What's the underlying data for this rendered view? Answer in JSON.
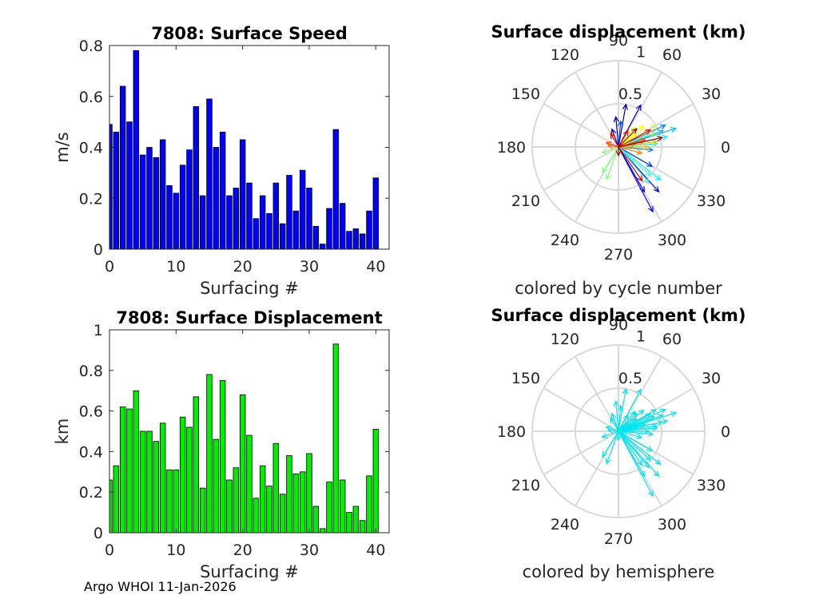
{
  "chart_data": [
    {
      "type": "bar",
      "title": "7808: Surface Speed",
      "xlabel": "Surfacing #",
      "ylabel": "m/s",
      "xlim": [
        0,
        42
      ],
      "ylim": [
        0,
        0.8
      ],
      "xticks": [
        "0",
        "10",
        "20",
        "30",
        "40"
      ],
      "yticks": [
        "0",
        "0.2",
        "0.4",
        "0.6",
        "0.8"
      ],
      "color": "#0000ff",
      "x": [
        0,
        1,
        2,
        3,
        4,
        5,
        6,
        7,
        8,
        9,
        10,
        11,
        12,
        13,
        14,
        15,
        16,
        17,
        18,
        19,
        20,
        21,
        22,
        23,
        24,
        25,
        26,
        27,
        28,
        29,
        30,
        31,
        32,
        33,
        34,
        35,
        36,
        37,
        38,
        39,
        40
      ],
      "values": [
        0.49,
        0.46,
        0.64,
        0.5,
        0.78,
        0.37,
        0.4,
        0.36,
        0.43,
        0.25,
        0.22,
        0.33,
        0.39,
        0.56,
        0.21,
        0.59,
        0.4,
        0.46,
        0.21,
        0.24,
        0.43,
        0.26,
        0.12,
        0.21,
        0.14,
        0.26,
        0.1,
        0.29,
        0.15,
        0.31,
        0.24,
        0.09,
        0.02,
        0.16,
        0.47,
        0.18,
        0.07,
        0.08,
        0.06,
        0.15,
        0.28
      ]
    },
    {
      "type": "bar",
      "title": "7808: Surface Displacement",
      "xlabel": "Surfacing #",
      "ylabel": "km",
      "xlim": [
        0,
        42
      ],
      "ylim": [
        0,
        1
      ],
      "xticks": [
        "0",
        "10",
        "20",
        "30",
        "40"
      ],
      "yticks": [
        "0",
        "0.2",
        "0.4",
        "0.6",
        "0.8",
        "1"
      ],
      "color": "#00ee00",
      "x": [
        0,
        1,
        2,
        3,
        4,
        5,
        6,
        7,
        8,
        9,
        10,
        11,
        12,
        13,
        14,
        15,
        16,
        17,
        18,
        19,
        20,
        21,
        22,
        23,
        24,
        25,
        26,
        27,
        28,
        29,
        30,
        31,
        32,
        33,
        34,
        35,
        36,
        37,
        38,
        39,
        40
      ],
      "values": [
        0.26,
        0.33,
        0.62,
        0.61,
        0.7,
        0.5,
        0.5,
        0.45,
        0.54,
        0.31,
        0.31,
        0.57,
        0.52,
        0.67,
        0.22,
        0.78,
        0.46,
        0.75,
        0.26,
        0.32,
        0.68,
        0.48,
        0.17,
        0.33,
        0.23,
        0.44,
        0.19,
        0.38,
        0.29,
        0.3,
        0.39,
        0.13,
        0.02,
        0.25,
        0.93,
        0.26,
        0.1,
        0.13,
        0.06,
        0.28,
        0.51
      ]
    },
    {
      "type": "polar-compass",
      "title": "Surface displacement (km)",
      "caption": "colored by cycle number",
      "rmax": 1,
      "radial_ticks": [
        "0.5",
        "1"
      ],
      "angle_ticks": [
        "0",
        "30",
        "60",
        "90",
        "120",
        "150",
        "180",
        "210",
        "240",
        "270",
        "300",
        "330"
      ],
      "color_mode": "cycle",
      "colors": [
        "#00008f",
        "#0000c0",
        "#0000ff",
        "#0040ff",
        "#0080ff",
        "#00bfff",
        "#00ffff",
        "#40ffbf",
        "#80ff80",
        "#bfff40",
        "#ffff00",
        "#ffbf00",
        "#ff8000",
        "#ff4000",
        "#ff0000",
        "#c00000",
        "#8f0000"
      ],
      "vectors": [
        {
          "r": 0.5,
          "theta": 80
        },
        {
          "r": 0.35,
          "theta": 95
        },
        {
          "r": 0.22,
          "theta": 110
        },
        {
          "r": 0.55,
          "theta": 62
        },
        {
          "r": 0.6,
          "theta": 300
        },
        {
          "r": 0.85,
          "theta": 298
        },
        {
          "r": 0.7,
          "theta": 312
        },
        {
          "r": 0.45,
          "theta": 330
        },
        {
          "r": 0.3,
          "theta": 85
        },
        {
          "r": 0.4,
          "theta": 355
        },
        {
          "r": 0.25,
          "theta": 20
        },
        {
          "r": 0.6,
          "theta": 25
        },
        {
          "r": 0.55,
          "theta": 20
        },
        {
          "r": 0.7,
          "theta": 18
        },
        {
          "r": 0.58,
          "theta": 12
        },
        {
          "r": 0.45,
          "theta": 5
        },
        {
          "r": 0.62,
          "theta": 322
        },
        {
          "r": 0.5,
          "theta": 318
        },
        {
          "r": 0.55,
          "theta": 310
        },
        {
          "r": 0.35,
          "theta": 238
        },
        {
          "r": 0.4,
          "theta": 250
        },
        {
          "r": 0.2,
          "theta": 200
        },
        {
          "r": 0.45,
          "theta": 22
        },
        {
          "r": 0.5,
          "theta": 30
        },
        {
          "r": 0.38,
          "theta": 40
        },
        {
          "r": 0.3,
          "theta": 50
        },
        {
          "r": 0.25,
          "theta": 35
        },
        {
          "r": 0.45,
          "theta": 8
        },
        {
          "r": 0.35,
          "theta": 0
        },
        {
          "r": 0.28,
          "theta": 345
        },
        {
          "r": 0.2,
          "theta": 10
        },
        {
          "r": 0.12,
          "theta": 175
        },
        {
          "r": 0.15,
          "theta": 160
        },
        {
          "r": 0.32,
          "theta": 15
        },
        {
          "r": 0.42,
          "theta": 28
        },
        {
          "r": 0.18,
          "theta": 120
        },
        {
          "r": 0.22,
          "theta": 60
        },
        {
          "r": 0.48,
          "theta": 305
        },
        {
          "r": 0.1,
          "theta": 270
        },
        {
          "r": 0.3,
          "theta": 45
        },
        {
          "r": 0.52,
          "theta": 12
        }
      ]
    },
    {
      "type": "polar-compass",
      "title": "Surface displacement (km)",
      "caption": "colored by hemisphere",
      "rmax": 1,
      "radial_ticks": [
        "0.5",
        "1"
      ],
      "angle_ticks": [
        "0",
        "30",
        "60",
        "90",
        "120",
        "150",
        "180",
        "210",
        "240",
        "270",
        "300",
        "330"
      ],
      "color_mode": "single",
      "colors": [
        "#00e5ee"
      ],
      "vectors": [
        {
          "r": 0.5,
          "theta": 80
        },
        {
          "r": 0.35,
          "theta": 95
        },
        {
          "r": 0.22,
          "theta": 110
        },
        {
          "r": 0.55,
          "theta": 62
        },
        {
          "r": 0.6,
          "theta": 300
        },
        {
          "r": 0.85,
          "theta": 298
        },
        {
          "r": 0.7,
          "theta": 312
        },
        {
          "r": 0.45,
          "theta": 330
        },
        {
          "r": 0.3,
          "theta": 85
        },
        {
          "r": 0.4,
          "theta": 355
        },
        {
          "r": 0.25,
          "theta": 20
        },
        {
          "r": 0.6,
          "theta": 25
        },
        {
          "r": 0.55,
          "theta": 20
        },
        {
          "r": 0.7,
          "theta": 18
        },
        {
          "r": 0.58,
          "theta": 12
        },
        {
          "r": 0.45,
          "theta": 5
        },
        {
          "r": 0.62,
          "theta": 322
        },
        {
          "r": 0.5,
          "theta": 318
        },
        {
          "r": 0.55,
          "theta": 310
        },
        {
          "r": 0.35,
          "theta": 238
        },
        {
          "r": 0.4,
          "theta": 250
        },
        {
          "r": 0.2,
          "theta": 200
        },
        {
          "r": 0.45,
          "theta": 22
        },
        {
          "r": 0.5,
          "theta": 30
        },
        {
          "r": 0.38,
          "theta": 40
        },
        {
          "r": 0.3,
          "theta": 50
        },
        {
          "r": 0.25,
          "theta": 35
        },
        {
          "r": 0.45,
          "theta": 8
        },
        {
          "r": 0.35,
          "theta": 0
        },
        {
          "r": 0.28,
          "theta": 345
        },
        {
          "r": 0.2,
          "theta": 10
        },
        {
          "r": 0.12,
          "theta": 175
        },
        {
          "r": 0.15,
          "theta": 160
        },
        {
          "r": 0.32,
          "theta": 15
        },
        {
          "r": 0.42,
          "theta": 28
        },
        {
          "r": 0.18,
          "theta": 120
        },
        {
          "r": 0.22,
          "theta": 60
        },
        {
          "r": 0.48,
          "theta": 305
        },
        {
          "r": 0.1,
          "theta": 270
        },
        {
          "r": 0.3,
          "theta": 45
        },
        {
          "r": 0.52,
          "theta": 12
        }
      ]
    }
  ],
  "footer": "Argo WHOI 11-Jan-2026"
}
